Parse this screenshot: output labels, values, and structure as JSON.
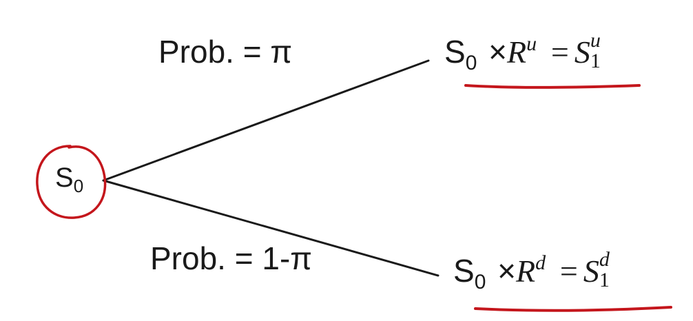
{
  "root": {
    "symbol": "S",
    "subscript": "0"
  },
  "branches": {
    "up": {
      "probability_label": "Prob. = π",
      "lhs_symbol": "S",
      "lhs_subscript": "0",
      "times": "×",
      "return_symbol": "R",
      "return_superscript": "u",
      "equals": "=",
      "result_symbol": "S",
      "result_superscript": "u",
      "result_subscript": "1"
    },
    "down": {
      "probability_label": "Prob. = 1-π",
      "lhs_symbol": "S",
      "lhs_subscript": "0",
      "times": "×",
      "return_symbol": "R",
      "return_superscript": "d",
      "equals": "=",
      "result_symbol": "S",
      "result_superscript": "d",
      "result_subscript": "1"
    }
  },
  "colors": {
    "line": "#1a1a1a",
    "annotation": "#c4161c"
  }
}
